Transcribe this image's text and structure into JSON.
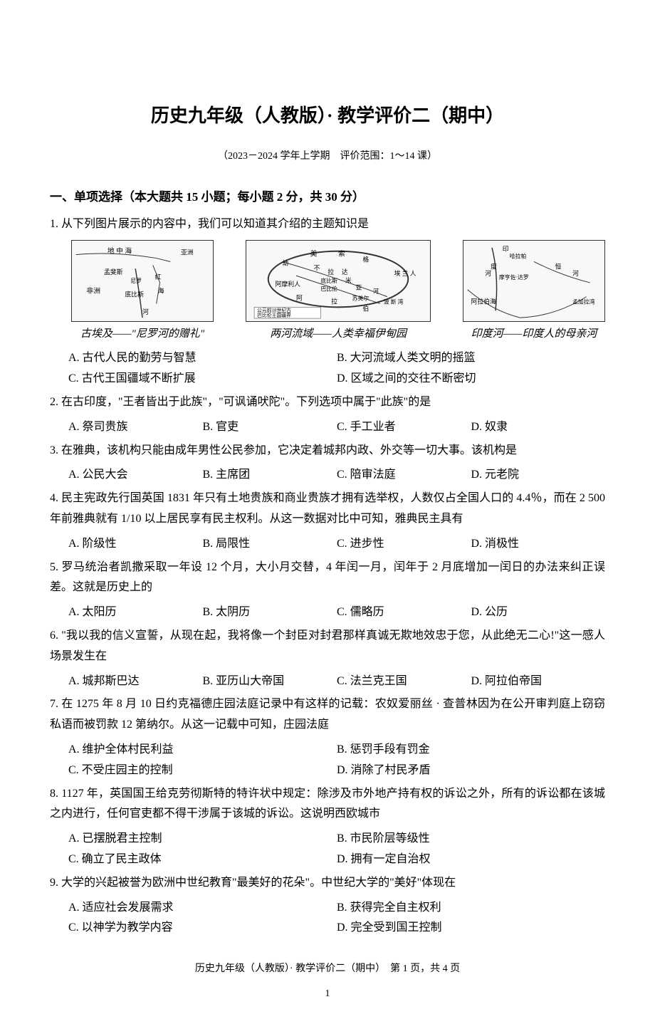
{
  "title": "历史九年级（人教版）· 教学评价二（期中）",
  "subtitle": "（2023－2024 学年上学期　评价范围：1～14 课）",
  "section1_header": "一、单项选择（本大题共 15 小题；每小题 2 分，共 30 分）",
  "maps": {
    "label1": "古埃及——\"尼罗河的赠礼\"",
    "label2": "两河流域——人类幸福伊甸园",
    "label3": "印度河——印度人的母亲河",
    "map1_texts": [
      "地 中 海",
      "孟斐斯",
      "非洲",
      "红海",
      "底比斯",
      "河",
      "亚洲",
      "尼罗"
    ],
    "map2_texts": [
      "美",
      "索",
      "幼",
      "格",
      "不",
      "拉",
      "达",
      "阿摩利人",
      "底比斯",
      "米",
      "亚",
      "河",
      "埃 兰 人",
      "巴比伦",
      "阿",
      "拉",
      "苏美尔",
      "伯",
      "公元前18世纪古巴比伦王国疆界"
    ],
    "map3_texts": [
      "印",
      "哈拉帕",
      "度",
      "河",
      "摩亨佐·达罗",
      "恒",
      "河",
      "阿拉伯海",
      "孟加拉湾"
    ]
  },
  "questions": [
    {
      "num": "1.",
      "text": "从下列图片展示的内容中，我们可以知道其介绍的主题知识是",
      "has_maps": true,
      "options": [
        {
          "label": "A.",
          "text": "古代人民的勤劳与智慧",
          "w": "2col"
        },
        {
          "label": "B.",
          "text": "大河流域人类文明的摇篮",
          "w": "2col"
        },
        {
          "label": "C.",
          "text": "古代王国疆域不断扩展",
          "w": "2col"
        },
        {
          "label": "D.",
          "text": "区域之间的交往不断密切",
          "w": "2col"
        }
      ]
    },
    {
      "num": "2.",
      "text": "在古印度，\"王者皆出于此族\"，\"可讽诵吠陀\"。下列选项中属于\"此族\"的是",
      "options": [
        {
          "label": "A.",
          "text": "祭司贵族",
          "w": "4col"
        },
        {
          "label": "B.",
          "text": "官吏",
          "w": "4col"
        },
        {
          "label": "C.",
          "text": "手工业者",
          "w": "4col"
        },
        {
          "label": "D.",
          "text": "奴隶",
          "w": "4col"
        }
      ]
    },
    {
      "num": "3.",
      "text": "在雅典，该机构只能由成年男性公民参加，它决定着城邦内政、外交等一切大事。该机构是",
      "options": [
        {
          "label": "A.",
          "text": "公民大会",
          "w": "4col"
        },
        {
          "label": "B.",
          "text": "主席团",
          "w": "4col"
        },
        {
          "label": "C.",
          "text": "陪审法庭",
          "w": "4col"
        },
        {
          "label": "D.",
          "text": "元老院",
          "w": "4col"
        }
      ]
    },
    {
      "num": "4.",
      "text": "民主宪政先行国英国 1831 年只有土地贵族和商业贵族才拥有选举权，人数仅占全国人口的 4.4％，而在 2 500 年前雅典就有 1/10 以上居民享有民主权利。从这一数据对比中可知，雅典民主具有",
      "options": [
        {
          "label": "A.",
          "text": "阶级性",
          "w": "4col"
        },
        {
          "label": "B.",
          "text": "局限性",
          "w": "4col"
        },
        {
          "label": "C.",
          "text": "进步性",
          "w": "4col"
        },
        {
          "label": "D.",
          "text": "消极性",
          "w": "4col"
        }
      ]
    },
    {
      "num": "5.",
      "text": "罗马统治者凯撒采取一年设 12 个月，大小月交替，4 年闰一月，闰年于 2 月底增加一闰日的办法来纠正误差。这就是历史上的",
      "options": [
        {
          "label": "A.",
          "text": "太阳历",
          "w": "4col"
        },
        {
          "label": "B.",
          "text": "太阴历",
          "w": "4col"
        },
        {
          "label": "C.",
          "text": "儒略历",
          "w": "4col"
        },
        {
          "label": "D.",
          "text": "公历",
          "w": "4col"
        }
      ]
    },
    {
      "num": "6.",
      "text": "\"我以我的信义宣誓，从现在起，我将像一个封臣对封君那样真诚无欺地效忠于您，从此绝无二心!\"这一感人场景发生在",
      "options": [
        {
          "label": "A.",
          "text": "城邦斯巴达",
          "w": "4col"
        },
        {
          "label": "B.",
          "text": "亚历山大帝国",
          "w": "4col"
        },
        {
          "label": "C.",
          "text": "法兰克王国",
          "w": "4col"
        },
        {
          "label": "D.",
          "text": "阿拉伯帝国",
          "w": "4col"
        }
      ]
    },
    {
      "num": "7.",
      "text": "在 1275 年 8 月 10 日约克福德庄园法庭记录中有这样的记载：农奴爱丽丝 · 查普林因为在公开审判庭上窃窃私语而被罚款 12 第纳尔。从这一记载中可知，庄园法庭",
      "options": [
        {
          "label": "A.",
          "text": "维护全体村民利益",
          "w": "2col"
        },
        {
          "label": "B.",
          "text": "惩罚手段有罚金",
          "w": "2col"
        },
        {
          "label": "C.",
          "text": "不受庄园主的控制",
          "w": "2col"
        },
        {
          "label": "D.",
          "text": "消除了村民矛盾",
          "w": "2col"
        }
      ]
    },
    {
      "num": "8.",
      "text": "1127 年，英国国王给克劳彻斯特的特许状中规定：除涉及市外地产持有权的诉讼之外，所有的诉讼都在该城之内进行，任何官吏都不得干涉属于该城的诉讼。这说明西欧城市",
      "options": [
        {
          "label": "A.",
          "text": "已摆脱君主控制",
          "w": "2col"
        },
        {
          "label": "B.",
          "text": "市民阶层等级性",
          "w": "2col"
        },
        {
          "label": "C.",
          "text": "确立了民主政体",
          "w": "2col"
        },
        {
          "label": "D.",
          "text": "拥有一定自治权",
          "w": "2col"
        }
      ]
    },
    {
      "num": "9.",
      "text": "大学的兴起被誉为欧洲中世纪教育\"最美好的花朵\"。中世纪大学的\"美好\"体现在",
      "options": [
        {
          "label": "A.",
          "text": "适应社会发展需求",
          "w": "2col"
        },
        {
          "label": "B.",
          "text": "获得完全自主权利",
          "w": "2col"
        },
        {
          "label": "C.",
          "text": "以神学为教学内容",
          "w": "2col"
        },
        {
          "label": "D.",
          "text": "完全受到国王控制",
          "w": "2col"
        }
      ]
    }
  ],
  "footer": "历史九年级（人教版）· 教学评价二（期中）　第 1 页，共 4 页",
  "page_num": "1"
}
